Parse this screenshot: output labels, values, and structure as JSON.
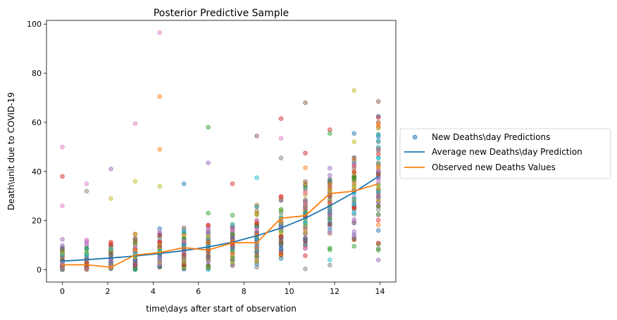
{
  "chart_data": {
    "type": "scatter",
    "title": "Posterior Predictive Sample",
    "xlabel": "time\\days after start of observation",
    "ylabel": "Death\\unit due to COVID-19",
    "xlim": [
      -0.7,
      14.7
    ],
    "ylim": [
      -5,
      101.5
    ],
    "xticks": [
      0,
      2,
      4,
      6,
      8,
      10,
      12,
      14
    ],
    "yticks": [
      0,
      20,
      40,
      60,
      80,
      100
    ],
    "grid": false,
    "legend": {
      "placement": "right-outside",
      "entries": [
        {
          "label": "New Deaths\\day Predictions",
          "kind": "marker",
          "color": "#1f77b4"
        },
        {
          "label": "Average new Deaths\\day Prediction",
          "kind": "line",
          "color": "#1f77b4"
        },
        {
          "label": "Observed new Deaths Values",
          "kind": "line",
          "color": "#ff7f0e"
        }
      ]
    },
    "days": [
      0,
      1.07,
      2.14,
      3.21,
      4.29,
      5.36,
      6.43,
      7.5,
      8.57,
      9.64,
      10.71,
      11.79,
      12.86,
      13.93
    ],
    "average_prediction": {
      "name": "Average new Deaths\\day Prediction",
      "color": "#1f77b4",
      "y": [
        3.5,
        4.1,
        4.8,
        5.6,
        6.6,
        7.8,
        9.3,
        11.2,
        13.8,
        17.0,
        21.0,
        26.0,
        31.5,
        38.0
      ]
    },
    "observed": {
      "name": "Observed new Deaths Values",
      "color": "#ff7f0e",
      "y": [
        2,
        2,
        1,
        6,
        7,
        9,
        8,
        11,
        11,
        21,
        22,
        31,
        32,
        35
      ]
    },
    "predictions": {
      "name": "New Deaths\\day Predictions",
      "palette": [
        "#1f77b4",
        "#ff7f0e",
        "#2ca02c",
        "#d62728",
        "#9467bd",
        "#8c564b",
        "#e377c2",
        "#7f7f7f",
        "#bcbd22",
        "#17becf"
      ],
      "samples_per_day": 60,
      "outliers": [
        {
          "x": 0,
          "y": 50,
          "color": "#e377c2"
        },
        {
          "x": 0,
          "y": 38,
          "color": "#d62728"
        },
        {
          "x": 0,
          "y": 26,
          "color": "#e377c2"
        },
        {
          "x": 1.07,
          "y": 35,
          "color": "#e377c2"
        },
        {
          "x": 1.07,
          "y": 32,
          "color": "#7f7f7f"
        },
        {
          "x": 2.14,
          "y": 41,
          "color": "#9467bd"
        },
        {
          "x": 2.14,
          "y": 29,
          "color": "#bcbd22"
        },
        {
          "x": 3.21,
          "y": 59.5,
          "color": "#e377c2"
        },
        {
          "x": 3.21,
          "y": 36,
          "color": "#bcbd22"
        },
        {
          "x": 4.29,
          "y": 96.5,
          "color": "#e377c2"
        },
        {
          "x": 4.29,
          "y": 70.5,
          "color": "#ff7f0e"
        },
        {
          "x": 4.29,
          "y": 49,
          "color": "#ff7f0e"
        },
        {
          "x": 4.29,
          "y": 34,
          "color": "#bcbd22"
        },
        {
          "x": 5.36,
          "y": 35,
          "color": "#1f77b4"
        },
        {
          "x": 6.43,
          "y": 58,
          "color": "#2ca02c"
        },
        {
          "x": 6.43,
          "y": 43.5,
          "color": "#9467bd"
        },
        {
          "x": 7.5,
          "y": 35,
          "color": "#d62728"
        },
        {
          "x": 8.57,
          "y": 54.5,
          "color": "#8c564b"
        },
        {
          "x": 8.57,
          "y": 37.5,
          "color": "#17becf"
        },
        {
          "x": 9.64,
          "y": 61.5,
          "color": "#d62728"
        },
        {
          "x": 9.64,
          "y": 53.5,
          "color": "#e377c2"
        },
        {
          "x": 9.64,
          "y": 45.5,
          "color": "#7f7f7f"
        },
        {
          "x": 10.71,
          "y": 68,
          "color": "#8c564b"
        },
        {
          "x": 10.71,
          "y": 47.5,
          "color": "#d62728"
        },
        {
          "x": 10.71,
          "y": 41.5,
          "color": "#ff7f0e"
        },
        {
          "x": 11.79,
          "y": 57,
          "color": "#d62728"
        },
        {
          "x": 11.79,
          "y": 55.5,
          "color": "#2ca02c"
        },
        {
          "x": 11.79,
          "y": 4,
          "color": "#17becf"
        },
        {
          "x": 12.86,
          "y": 73,
          "color": "#bcbd22"
        },
        {
          "x": 12.86,
          "y": 55.5,
          "color": "#1f77b4"
        },
        {
          "x": 13.93,
          "y": 68.5,
          "color": "#8c564b"
        },
        {
          "x": 13.93,
          "y": 62,
          "color": "#d62728"
        },
        {
          "x": 13.93,
          "y": 59.5,
          "color": "#ff7f0e"
        },
        {
          "x": 13.93,
          "y": 55,
          "color": "#17becf"
        },
        {
          "x": 13.93,
          "y": 16,
          "color": "#1f77b4"
        },
        {
          "x": 13.93,
          "y": 8,
          "color": "#2ca02c"
        },
        {
          "x": 13.93,
          "y": 4,
          "color": "#9467bd"
        }
      ]
    }
  }
}
